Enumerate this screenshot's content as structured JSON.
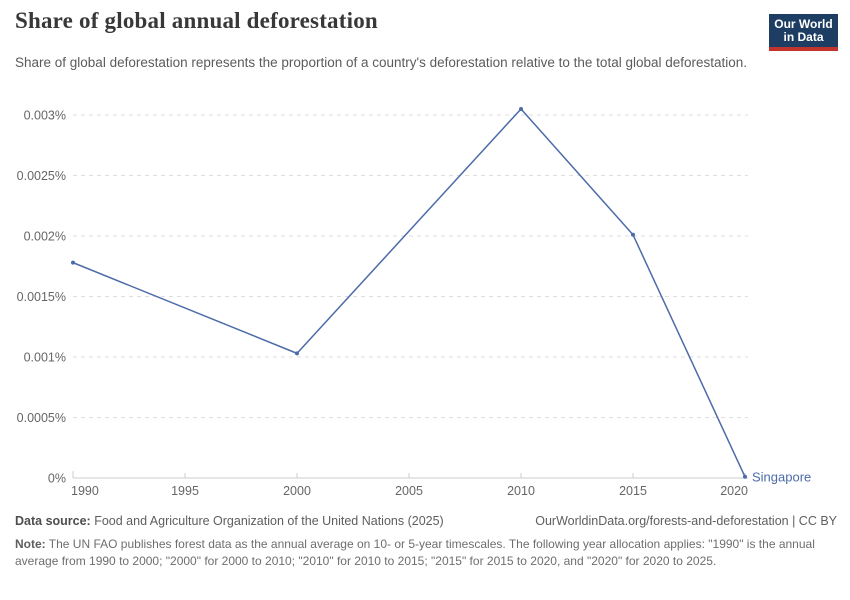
{
  "header": {
    "title": "Share of global annual deforestation",
    "subtitle": "Share of global deforestation represents the proportion of a country's deforestation relative to the total global deforestation.",
    "logo": {
      "line1": "Our World",
      "line2": "in Data"
    }
  },
  "chart_data": {
    "type": "line",
    "title": "Share of global annual deforestation",
    "xlabel": "",
    "ylabel": "",
    "xlim": [
      1990,
      2020
    ],
    "ylim": [
      0,
      0.003
    ],
    "grid": "horizontal dashed",
    "legend_position": "end-of-line label",
    "x_ticks": [
      1990,
      1995,
      2000,
      2005,
      2010,
      2015,
      2020
    ],
    "y_ticks": [
      0,
      0.0005,
      0.001,
      0.0015,
      0.002,
      0.0025,
      0.003
    ],
    "y_tick_labels": [
      "0%",
      "0.0005%",
      "0.001%",
      "0.0015%",
      "0.002%",
      "0.0025%",
      "0.003%"
    ],
    "series": [
      {
        "name": "Singapore",
        "color": "#4c6ba8",
        "x": [
          1990,
          2000,
          2010,
          2015,
          2020
        ],
        "y": [
          0.00178,
          0.00103,
          0.00305,
          0.00201,
          1e-05
        ]
      }
    ]
  },
  "footer": {
    "source_label": "Data source:",
    "source_text": " Food and Agriculture Organization of the United Nations (2025)",
    "link_text": "OurWorldinData.org/forests-and-deforestation | CC BY",
    "note_label": "Note:",
    "note_text": " The UN FAO publishes forest data as the annual average on 10- or 5-year timescales. The following year allocation applies: \"1990\" is the annual average from 1990 to 2000; \"2000\" for 2000 to 2010; \"2010\" for 2010 to 2015; \"2015\" for 2015 to 2020, and \"2020\" for 2020 to 2025."
  },
  "colors": {
    "line": "#4c6ba8",
    "grid": "#dedede",
    "axis": "#cccccc",
    "tick_text": "#666666",
    "title_text": "#383838",
    "subtitle_text": "#5b5b5b",
    "footer_text": "#5e5e5e",
    "note_text": "#6e6e6e",
    "logo_bg": "#1d3d63",
    "logo_accent": "#c0342c"
  }
}
